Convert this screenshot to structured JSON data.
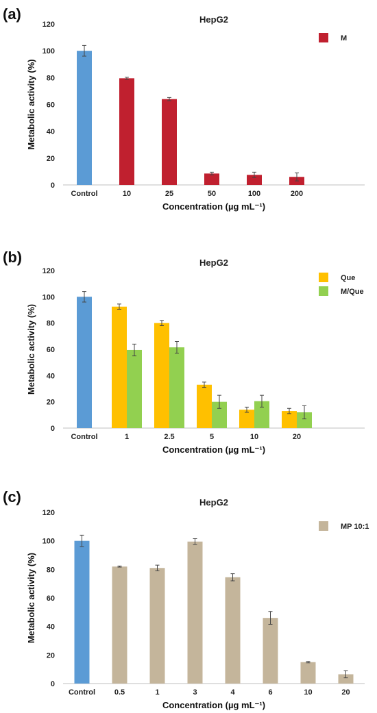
{
  "chart_data": [
    {
      "panel_label": "(a)",
      "type": "bar",
      "title": "HepG2",
      "xlabel": "Concentration (µg mL⁻¹)",
      "ylabel": "Metabolic activity (%)",
      "ylim": [
        0,
        120
      ],
      "yticks": [
        0,
        20,
        40,
        60,
        80,
        100,
        120
      ],
      "grid": false,
      "legend_position": "top-right",
      "control": {
        "label": "Control",
        "value": 100,
        "error": 4,
        "color": "#5b9bd5"
      },
      "categories": [
        "10",
        "25",
        "50",
        "100",
        "200"
      ],
      "series": [
        {
          "name": "M",
          "color": "#c0202f",
          "values": [
            79.5,
            64,
            8.5,
            7.5,
            6
          ],
          "errors": [
            0.8,
            1.2,
            1,
            2,
            3
          ]
        }
      ]
    },
    {
      "panel_label": "(b)",
      "type": "bar",
      "title": "HepG2",
      "xlabel": "Concentration (µg mL⁻¹)",
      "ylabel": "Metabolic activity (%)",
      "ylim": [
        0,
        120
      ],
      "yticks": [
        0,
        20,
        40,
        60,
        80,
        100,
        120
      ],
      "grid": false,
      "legend_position": "top-right",
      "control": {
        "label": "Control",
        "value": 100,
        "error": 4,
        "color": "#5b9bd5"
      },
      "categories": [
        "1",
        "2.5",
        "5",
        "10",
        "20"
      ],
      "series": [
        {
          "name": "Que",
          "color": "#ffc000",
          "values": [
            92.5,
            80,
            33,
            14,
            13
          ],
          "errors": [
            2,
            2,
            2,
            2,
            2
          ]
        },
        {
          "name": "M/Que",
          "color": "#92d050",
          "values": [
            59.5,
            61.5,
            20,
            20.5,
            12
          ],
          "errors": [
            4.5,
            4.5,
            5,
            4.5,
            5
          ]
        }
      ]
    },
    {
      "panel_label": "(c)",
      "type": "bar",
      "title": "HepG2",
      "xlabel": "Concentration (µg mL⁻¹)",
      "ylabel": "Metabolic activity (%)",
      "ylim": [
        0,
        120
      ],
      "yticks": [
        0,
        20,
        40,
        60,
        80,
        100,
        120
      ],
      "grid": false,
      "legend_position": "top-right",
      "control": {
        "label": "Control",
        "value": 100,
        "error": 4,
        "color": "#5b9bd5"
      },
      "categories": [
        "0.5",
        "1",
        "3",
        "4",
        "6",
        "10",
        "20"
      ],
      "series": [
        {
          "name": "MP 10:1",
          "color": "#c4b59b",
          "values": [
            82,
            81,
            99.5,
            74.5,
            46,
            15,
            6.5
          ],
          "errors": [
            0.4,
            2,
            2,
            2.5,
            4.5,
            0.5,
            2.5
          ]
        }
      ]
    }
  ]
}
